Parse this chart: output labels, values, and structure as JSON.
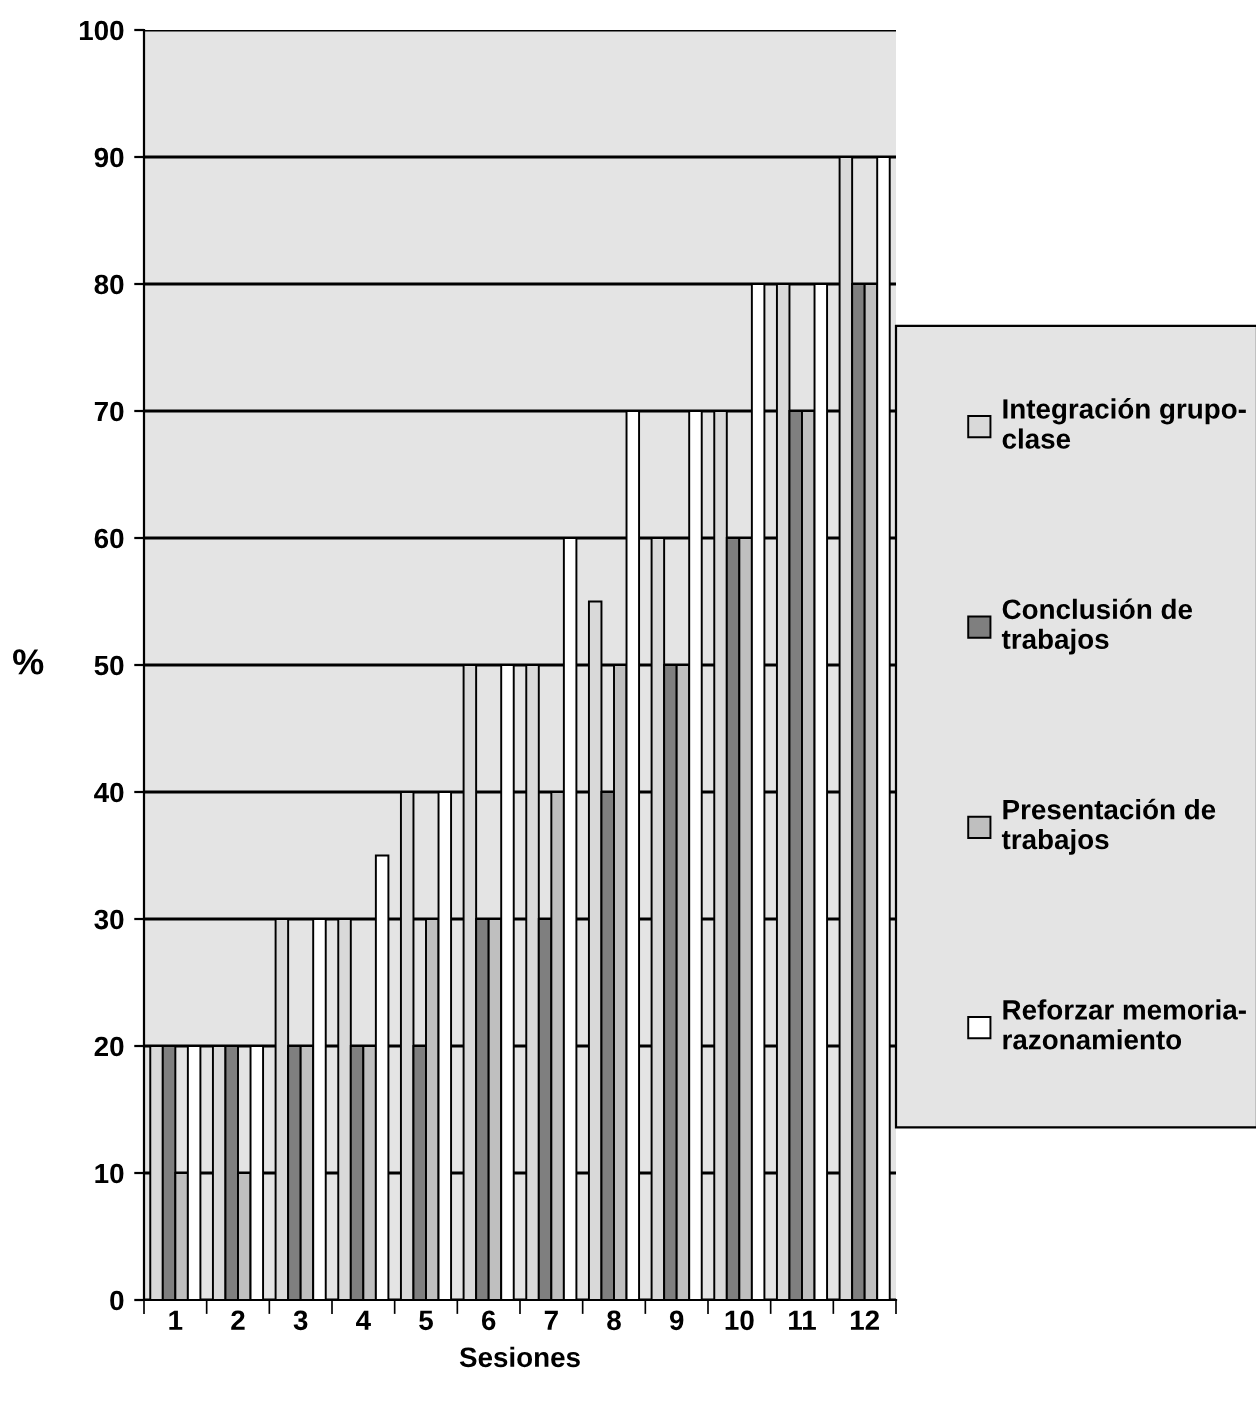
{
  "chart_data": {
    "type": "bar",
    "xlabel": "Sesiones",
    "ylabel": "%",
    "categories": [
      "1",
      "2",
      "3",
      "4",
      "5",
      "6",
      "7",
      "8",
      "9",
      "10",
      "11",
      "12"
    ],
    "series": [
      {
        "name": "Integración grupo-clase",
        "color": "#d9d9d9",
        "values": [
          20,
          20,
          30,
          30,
          40,
          50,
          50,
          55,
          60,
          70,
          80,
          90
        ]
      },
      {
        "name": "Conclusión de trabajos",
        "color": "#7f7f7f",
        "values": [
          20,
          20,
          20,
          20,
          20,
          30,
          30,
          40,
          50,
          60,
          70,
          80
        ]
      },
      {
        "name": "Presentación de trabajos",
        "color": "#bfbfbf",
        "values": [
          10,
          10,
          20,
          20,
          30,
          30,
          40,
          50,
          50,
          60,
          70,
          80
        ]
      },
      {
        "name": "Reforzar memoria-razonamiento",
        "color": "#ffffff",
        "values": [
          20,
          20,
          30,
          35,
          40,
          50,
          60,
          70,
          70,
          80,
          80,
          90
        ]
      }
    ],
    "ylim": [
      0,
      100
    ],
    "yticks": [
      0,
      10,
      20,
      30,
      40,
      50,
      60,
      70,
      80,
      90,
      100
    ],
    "grid": "y",
    "legend": "right"
  }
}
